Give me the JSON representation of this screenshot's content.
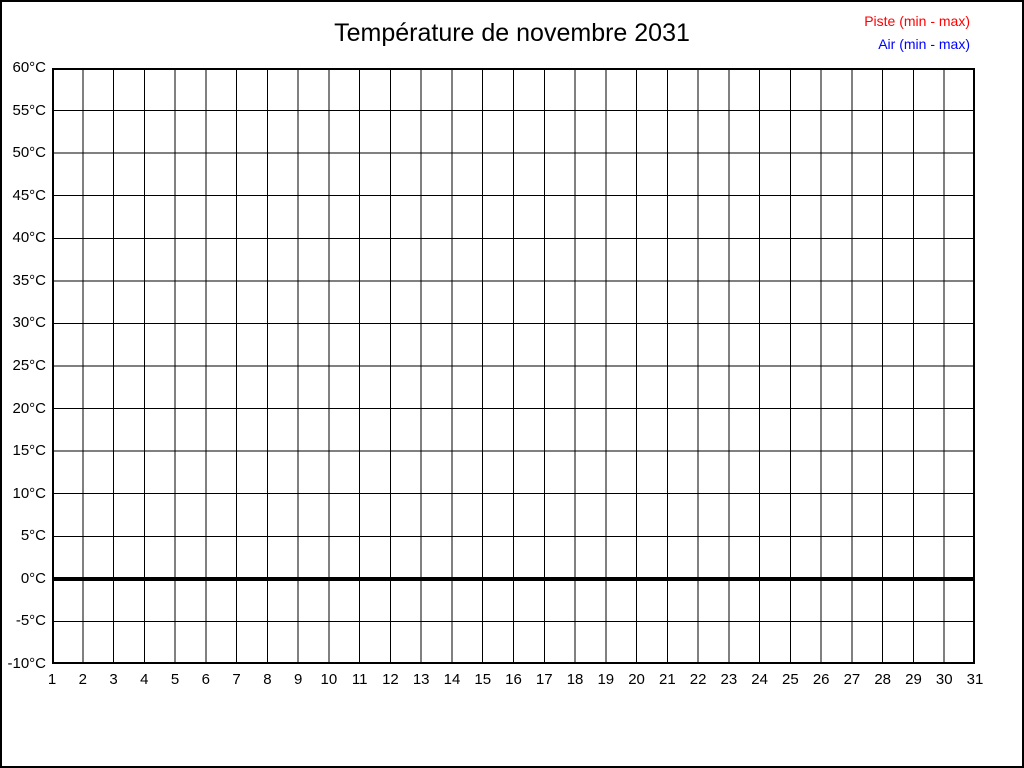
{
  "page": {
    "background": "#ffffff",
    "frame_color": "#000000"
  },
  "chart_data": {
    "type": "line",
    "title": "Température de novembre 2031",
    "xlabel": "",
    "ylabel": "",
    "grid": true,
    "grid_color": "#000000",
    "legend_position": "top-right",
    "x_axis": {
      "min": 1,
      "max": 31,
      "step": 1
    },
    "y_axis": {
      "min": -10,
      "max": 60,
      "step": 5,
      "unit": "°C"
    },
    "x_tick_labels": [
      "1",
      "2",
      "3",
      "4",
      "5",
      "6",
      "7",
      "8",
      "9",
      "10",
      "11",
      "12",
      "13",
      "14",
      "15",
      "16",
      "17",
      "18",
      "19",
      "20",
      "21",
      "22",
      "23",
      "24",
      "25",
      "26",
      "27",
      "28",
      "29",
      "30",
      "31"
    ],
    "y_tick_labels": [
      "60°C",
      "55°C",
      "50°C",
      "45°C",
      "40°C",
      "35°C",
      "30°C",
      "25°C",
      "20°C",
      "15°C",
      "10°C",
      "5°C",
      "0°C",
      "-5°C",
      "-10°C"
    ],
    "zero_line": {
      "value": 0,
      "color": "#000000",
      "width": 4
    },
    "series": [
      {
        "name": "Piste (min - max)",
        "color": "#ff0000",
        "values": []
      },
      {
        "name": "Air (min - max)",
        "color": "#0000ff",
        "values": []
      }
    ]
  }
}
